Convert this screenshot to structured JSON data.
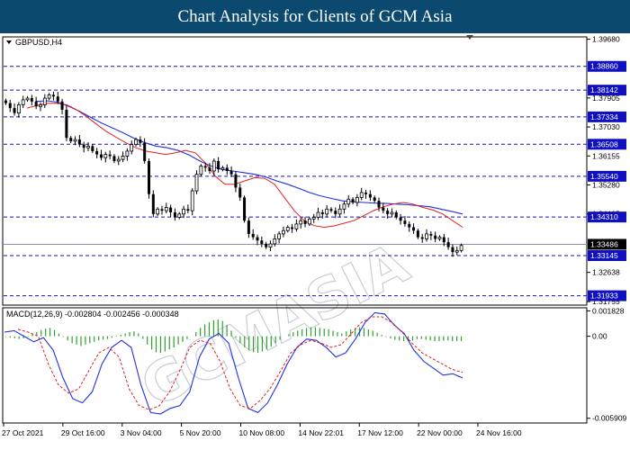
{
  "title": "Chart Analysis for Clients of GCM Asia",
  "watermark": "GCMASIA",
  "colors": {
    "title_bg": "#0b4a6e",
    "bull": "#000000",
    "bear": "#000000",
    "ma_fast": "#e02020",
    "ma_slow": "#2030e0",
    "level_line": "#1010c0",
    "level_box": "#1010c0",
    "current_box": "#000000",
    "macd_hist": "#2ea02e",
    "macd_line": "#2030e0",
    "macd_signal": "#e02020"
  },
  "chart_data": [
    {
      "type": "candlestick",
      "symbol": "GBPUSD,H4",
      "ylim": [
        1.3165,
        1.3975
      ],
      "y_ticks": [
        "1.39680",
        "1.37905",
        "1.37030",
        "1.36155",
        "1.35280",
        "1.34405",
        "1.32638",
        "1.31755"
      ],
      "levels": [
        {
          "value": 1.3886,
          "label": "1.38860"
        },
        {
          "value": 1.38142,
          "label": "1.38142"
        },
        {
          "value": 1.37334,
          "label": "1.37334"
        },
        {
          "value": 1.36508,
          "label": "1.36508"
        },
        {
          "value": 1.3554,
          "label": "1.35540"
        },
        {
          "value": 1.3431,
          "label": "1.34310"
        },
        {
          "value": 1.33145,
          "label": "1.33145"
        },
        {
          "value": 1.31933,
          "label": "1.31933"
        }
      ],
      "current_price": {
        "value": 1.33486,
        "label": "1.33486"
      },
      "close_path": [
        1.3775,
        1.376,
        1.3745,
        1.377,
        1.3785,
        1.379,
        1.378,
        1.3765,
        1.377,
        1.379,
        1.38,
        1.3795,
        1.378,
        1.3755,
        1.367,
        1.366,
        1.3665,
        1.365,
        1.364,
        1.3645,
        1.363,
        1.362,
        1.361,
        1.362,
        1.3615,
        1.36,
        1.3605,
        1.3615,
        1.363,
        1.365,
        1.3665,
        1.3655,
        1.36,
        1.35,
        1.344,
        1.3455,
        1.345,
        1.346,
        1.3445,
        1.343,
        1.344,
        1.3455,
        1.345,
        1.351,
        1.356,
        1.3585,
        1.358,
        1.357,
        1.36,
        1.3575,
        1.358,
        1.357,
        1.356,
        1.352,
        1.349,
        1.342,
        1.338,
        1.337,
        1.336,
        1.335,
        1.334,
        1.335,
        1.3365,
        1.338,
        1.339,
        1.34,
        1.3395,
        1.341,
        1.342,
        1.341,
        1.3425,
        1.343,
        1.3445,
        1.344,
        1.3455,
        1.345,
        1.344,
        1.3455,
        1.347,
        1.3485,
        1.3475,
        1.349,
        1.3505,
        1.35,
        1.349,
        1.348,
        1.346,
        1.345,
        1.344,
        1.3445,
        1.343,
        1.342,
        1.341,
        1.34,
        1.339,
        1.337,
        1.3365,
        1.338,
        1.3375,
        1.3365,
        1.337,
        1.3355,
        1.334,
        1.3325,
        1.333,
        1.3345
      ],
      "ma_fast": [
        1.376,
        1.3768,
        1.3774,
        1.3775,
        1.377,
        1.3755,
        1.3735,
        1.3712,
        1.369,
        1.3672,
        1.3655,
        1.364,
        1.363,
        1.3625,
        1.362,
        1.3625,
        1.3632,
        1.3625,
        1.3595,
        1.3555,
        1.353,
        1.353,
        1.354,
        1.355,
        1.3548,
        1.353,
        1.349,
        1.345,
        1.342,
        1.3405,
        1.34,
        1.3404,
        1.3412,
        1.342,
        1.3435,
        1.345,
        1.3462,
        1.347,
        1.3475,
        1.347,
        1.346,
        1.3452,
        1.344,
        1.342,
        1.34
      ],
      "ma_slow": [
        1.378,
        1.3782,
        1.3778,
        1.3765,
        1.375,
        1.3732,
        1.3715,
        1.37,
        1.3685,
        1.3668,
        1.3655,
        1.3645,
        1.364,
        1.3632,
        1.3618,
        1.36,
        1.3585,
        1.3575,
        1.357,
        1.3565,
        1.356,
        1.3552,
        1.354,
        1.353,
        1.3518,
        1.3505,
        1.3495,
        1.3487,
        1.348,
        1.3477,
        1.3475,
        1.3473,
        1.3472,
        1.347,
        1.3468,
        1.3465,
        1.3462,
        1.3455,
        1.3448,
        1.344
      ]
    },
    {
      "type": "bar",
      "name": "MACD(12,26,9) -0.002804 -0.002456 -0.000348",
      "ylim": [
        -0.00625,
        0.00205
      ],
      "y_ticks": [
        "0.001828",
        "0.00",
        "-0.005909"
      ],
      "histogram": [
        -5e-05,
        -0.0001,
        -0.00015,
        -0.0002,
        -0.00015,
        -5e-05,
        0.00015,
        0.0003,
        0.00045,
        0.00055,
        0.0006,
        0.00045,
        0.0002,
        -5e-05,
        -0.0003,
        -0.0005,
        -0.0006,
        -0.0007,
        -0.0006,
        -0.0005,
        -0.0004,
        -0.0003,
        -0.00025,
        -0.0002,
        -0.0001,
        5e-05,
        0.0001,
        0.0002,
        0.0003,
        0.00035,
        0.0002,
        -0.0002,
        -0.0006,
        -0.00095,
        -0.00115,
        -0.0012,
        -0.0011,
        -0.00095,
        -0.0008,
        -0.0006,
        -0.0004,
        -0.0002,
        0.0,
        0.0003,
        0.0006,
        0.00085,
        0.001,
        0.00115,
        0.0012,
        0.0011,
        0.0008,
        0.0004,
        -0.0001,
        -0.0005,
        -0.0008,
        -0.001,
        -0.00115,
        -0.0012,
        -0.0011,
        -0.00095,
        -0.00075,
        -0.0005,
        -0.00025,
        0.0,
        0.00015,
        0.0003,
        0.0004,
        0.0005,
        0.0006,
        0.00065,
        0.00065,
        0.0006,
        0.00055,
        0.0005,
        0.0004,
        0.0003,
        0.0002,
        0.00035,
        0.0005,
        0.0006,
        0.00065,
        0.0006,
        0.0005,
        0.0004,
        0.00025,
        0.0001,
        -5e-05,
        -0.00015,
        -0.00025,
        -0.0003,
        -0.00035,
        -0.00035,
        -0.0003,
        -0.0002,
        -0.0002,
        -0.00025,
        -0.0003,
        -0.00035,
        -0.00035,
        -0.0003,
        -0.0003,
        -0.00035,
        -0.00035,
        -0.00035
      ],
      "macd_line": [
        0.0003,
        0.0004,
        0.0,
        -0.0004,
        -0.0001,
        -0.001,
        -0.003,
        -0.0045,
        -0.0048,
        -0.004,
        -0.002,
        -0.0008,
        -0.0003,
        -0.0008,
        -0.0035,
        -0.0055,
        -0.0056,
        -0.0052,
        -0.005,
        -0.004,
        -0.0015,
        -0.0002,
        0.0002,
        -0.0005,
        -0.003,
        -0.0052,
        -0.0055,
        -0.0048,
        -0.0035,
        -0.002,
        -0.0008,
        -0.0002,
        -0.0003,
        -0.0008,
        -0.0015,
        -0.0012,
        -0.0002,
        0.001,
        0.0017,
        0.0016,
        0.0008,
        0.0002,
        -0.001,
        -0.0018,
        -0.0023,
        -0.0028,
        -0.0027,
        -0.003
      ],
      "signal_line": [
        0.0005,
        0.0003,
        0.0,
        -0.002,
        -0.0035,
        -0.0041,
        -0.0038,
        -0.0025,
        -0.0012,
        -0.0008,
        -0.0015,
        -0.0038,
        -0.005,
        -0.0053,
        -0.005,
        -0.004,
        -0.0025,
        -0.0008,
        -0.0003,
        -0.0005,
        -0.0018,
        -0.0038,
        -0.005,
        -0.0052,
        -0.0046,
        -0.0037,
        -0.0025,
        -0.0012,
        -0.0006,
        -0.0003,
        -0.0005,
        -0.0008,
        -0.0006,
        0.0002,
        0.001,
        0.0014,
        0.0014,
        0.001,
        0.0003,
        -0.0005,
        -0.0012,
        -0.0016,
        -0.002,
        -0.0024,
        -0.0026
      ]
    }
  ],
  "x_ticks": [
    "27 Oct 2021",
    "29 Oct 16:00",
    "3 Nov 04:00",
    "5 Nov 20:00",
    "10 Nov 08:00",
    "14 Nov 22:01",
    "17 Nov 12:00",
    "22 Nov 00:00",
    "24 Nov 16:00"
  ]
}
